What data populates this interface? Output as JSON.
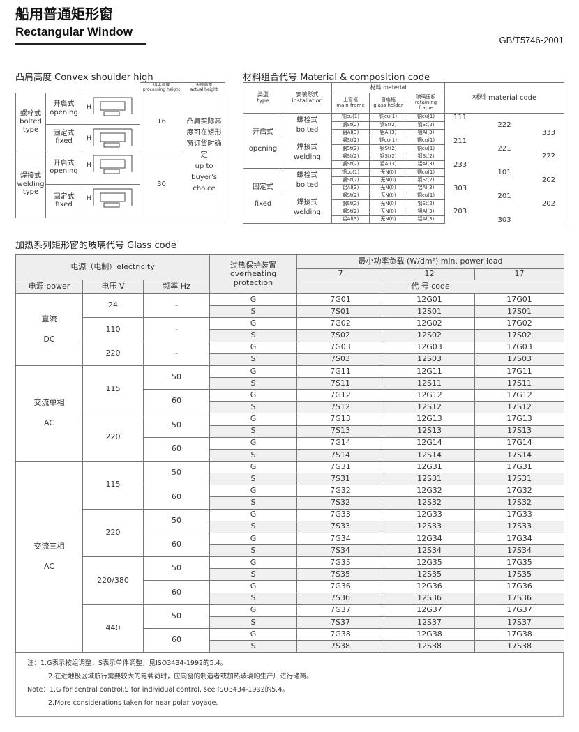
{
  "header": {
    "title_cn": "船用普通矩形窗",
    "title_en": "Rectangular Window",
    "standard": "GB/T5746-2001"
  },
  "convex": {
    "caption": "凸肩高度 Convex shoulder high",
    "head_proc_cn": "加工高度",
    "head_proc_en": "processing height",
    "head_act_cn": "实际高度",
    "head_act_en": "actual height",
    "drawing_label": "H",
    "groups": [
      {
        "type_cn": "螺栓式",
        "type_en": "bolted type",
        "subs": [
          {
            "cn": "开启式",
            "en": "opening"
          },
          {
            "cn": "固定式",
            "en": "fixed"
          }
        ],
        "height": "16"
      },
      {
        "type_cn": "焊接式",
        "type_en": "welding type",
        "subs": [
          {
            "cn": "开启式",
            "en": "opening"
          },
          {
            "cn": "固定式",
            "en": "fixed"
          }
        ],
        "height": "30"
      }
    ],
    "note_cn": "凸肩实际高度可在矩形窗订货时确定",
    "note_en": "up to buyer's choice"
  },
  "material": {
    "caption": "材料组合代号 Material & composition code",
    "head": {
      "type_cn": "类型",
      "type_en": "type",
      "inst_cn": "安装形式",
      "inst_en": "installation",
      "material": "材料 material",
      "main_cn": "主窗框",
      "main_en": "main frame",
      "holder_cn": "窗扇框",
      "holder_en": "glass holder",
      "ret_cn": "玻璃压板",
      "ret_en": "retaining frame",
      "code": "材料 material code"
    },
    "groups": [
      {
        "type_cn": "开启式",
        "type_en": "opening",
        "installs": [
          {
            "cn": "螺栓式",
            "en": "bolted",
            "rows": [
              [
                "铜cu(1)",
                "铜cu(1)",
                "铜cu(1)",
                "111"
              ],
              [
                "钢St(2)",
                "钢St(2)",
                "钢St(2)",
                "222"
              ],
              [
                "铝Al(3)",
                "铝Al(3)",
                "铝Al(3)",
                "333"
              ]
            ]
          },
          {
            "cn": "焊接式",
            "en": "welding",
            "rows": [
              [
                "钢St(2)",
                "铜cu(1)",
                "铜cu(1)",
                "211"
              ],
              [
                "钢St(2)",
                "钢St(2)",
                "铜cu(1)",
                "221"
              ],
              [
                "钢St(2)",
                "钢St(2)",
                "钢St(2)",
                "222"
              ],
              [
                "钢St(2)",
                "铝Al(3)",
                "铝Al(3)",
                "233"
              ]
            ]
          }
        ]
      },
      {
        "type_cn": "固定式",
        "type_en": "fixed",
        "installs": [
          {
            "cn": "螺栓式",
            "en": "bolted",
            "rows": [
              [
                "铜cu(1)",
                "无N(0)",
                "铜cu(1)",
                "101"
              ],
              [
                "钢St(2)",
                "无N(0)",
                "钢St(2)",
                "202"
              ],
              [
                "铝Al(3)",
                "无N(0)",
                "铝Al(3)",
                "303"
              ]
            ]
          },
          {
            "cn": "焊接式",
            "en": "welding",
            "rows": [
              [
                "钢St(2)",
                "无N(0)",
                "铜cu(1)",
                "201"
              ],
              [
                "钢St(2)",
                "无N(0)",
                "钢St(2)",
                "202"
              ],
              [
                "钢St(2)",
                "无N(0)",
                "铝Al(3)",
                "203"
              ],
              [
                "铝Al(3)",
                "无N(0)",
                "铝Al(3)",
                "303"
              ]
            ]
          }
        ]
      }
    ]
  },
  "glass": {
    "caption": "加热系列矩形窗的玻璃代号 Glass code",
    "head": {
      "electricity": "电源（电制）electricity",
      "power": "电源 power",
      "voltage": "电压 V",
      "freq": "频率 Hz",
      "protection": "过热保护装置 overheating protection",
      "minload": "最小功率负载 (W/dm²) min. power load",
      "loads": [
        "7",
        "12",
        "17"
      ],
      "code": "代 号 code"
    },
    "groups": [
      {
        "power": [
          "直流",
          "DC"
        ],
        "voltages": [
          {
            "voltage": "24",
            "freqs": [
              {
                "freq": "-",
                "rows": [
                  [
                    "G",
                    "7G01",
                    "12G01",
                    "17G01"
                  ],
                  [
                    "S",
                    "7S01",
                    "12S01",
                    "17S01"
                  ]
                ]
              }
            ]
          },
          {
            "voltage": "110",
            "freqs": [
              {
                "freq": "-",
                "rows": [
                  [
                    "G",
                    "7G02",
                    "12G02",
                    "17G02"
                  ],
                  [
                    "S",
                    "7S02",
                    "12S02",
                    "17S02"
                  ]
                ]
              }
            ]
          },
          {
            "voltage": "220",
            "freqs": [
              {
                "freq": "-",
                "rows": [
                  [
                    "G",
                    "7G03",
                    "12G03",
                    "17G03"
                  ],
                  [
                    "S",
                    "7S03",
                    "12S03",
                    "17S03"
                  ]
                ]
              }
            ]
          }
        ]
      },
      {
        "power": [
          "交流单相",
          "AC"
        ],
        "voltages": [
          {
            "voltage": "115",
            "freqs": [
              {
                "freq": "50",
                "rows": [
                  [
                    "G",
                    "7G11",
                    "12G11",
                    "17G11"
                  ],
                  [
                    "S",
                    "7S11",
                    "12S11",
                    "17S11"
                  ]
                ]
              },
              {
                "freq": "60",
                "rows": [
                  [
                    "G",
                    "7G12",
                    "12G12",
                    "17G12"
                  ],
                  [
                    "S",
                    "7S12",
                    "12S12",
                    "17S12"
                  ]
                ]
              }
            ]
          },
          {
            "voltage": "220",
            "freqs": [
              {
                "freq": "50",
                "rows": [
                  [
                    "G",
                    "7G13",
                    "12G13",
                    "17G13"
                  ],
                  [
                    "S",
                    "7S13",
                    "12S13",
                    "17S13"
                  ]
                ]
              },
              {
                "freq": "60",
                "rows": [
                  [
                    "G",
                    "7G14",
                    "12G14",
                    "17G14"
                  ],
                  [
                    "S",
                    "7S14",
                    "12S14",
                    "17S14"
                  ]
                ]
              }
            ]
          }
        ]
      },
      {
        "power": [
          "交流三相",
          "AC"
        ],
        "voltages": [
          {
            "voltage": "115",
            "freqs": [
              {
                "freq": "50",
                "rows": [
                  [
                    "G",
                    "7G31",
                    "12G31",
                    "17G31"
                  ],
                  [
                    "S",
                    "7S31",
                    "12S31",
                    "17S31"
                  ]
                ]
              },
              {
                "freq": "60",
                "rows": [
                  [
                    "G",
                    "7G32",
                    "12G32",
                    "17G32"
                  ],
                  [
                    "S",
                    "7S32",
                    "12S32",
                    "17S32"
                  ]
                ]
              }
            ]
          },
          {
            "voltage": "220",
            "freqs": [
              {
                "freq": "50",
                "rows": [
                  [
                    "G",
                    "7G33",
                    "12G33",
                    "17G33"
                  ],
                  [
                    "S",
                    "7S33",
                    "12S33",
                    "17S33"
                  ]
                ]
              },
              {
                "freq": "60",
                "rows": [
                  [
                    "G",
                    "7G34",
                    "12G34",
                    "17G34"
                  ],
                  [
                    "S",
                    "7S34",
                    "12S34",
                    "17S34"
                  ]
                ]
              }
            ]
          },
          {
            "voltage": "220/380",
            "freqs": [
              {
                "freq": "50",
                "rows": [
                  [
                    "G",
                    "7G35",
                    "12G35",
                    "17G35"
                  ],
                  [
                    "S",
                    "7S35",
                    "12S35",
                    "17S35"
                  ]
                ]
              },
              {
                "freq": "60",
                "rows": [
                  [
                    "G",
                    "7G36",
                    "12G36",
                    "17G36"
                  ],
                  [
                    "S",
                    "7S36",
                    "12S36",
                    "17S36"
                  ]
                ]
              }
            ]
          },
          {
            "voltage": "440",
            "freqs": [
              {
                "freq": "50",
                "rows": [
                  [
                    "G",
                    "7G37",
                    "12G37",
                    "17G37"
                  ],
                  [
                    "S",
                    "7S37",
                    "12S37",
                    "17S37"
                  ]
                ]
              },
              {
                "freq": "60",
                "rows": [
                  [
                    "G",
                    "7G38",
                    "12G38",
                    "17G38"
                  ],
                  [
                    "S",
                    "7S38",
                    "12S38",
                    "17S38"
                  ]
                ]
              }
            ]
          }
        ]
      }
    ]
  },
  "notes": [
    "注：1.G表示按组调整，S表示单件调整，见ISO3434-1992的5.4。",
    "2.在近地极区域航行需要较大的电载荷时，应向窗的制造者或加热玻璃的生产厂进行磋商。",
    "Note：1.G for central control.S for individual control, see ISO3434-1992的5.4。",
    "2.More considerations taken for near polar voyage."
  ]
}
